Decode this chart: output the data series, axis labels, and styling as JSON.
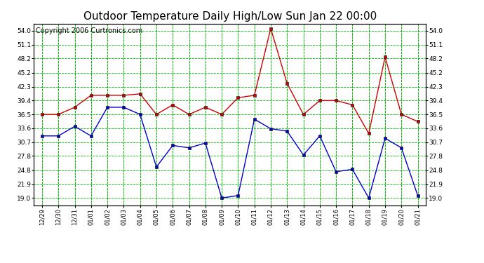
{
  "title": "Outdoor Temperature Daily High/Low Sun Jan 22 00:00",
  "copyright": "Copyright 2006 Curtronics.com",
  "x_labels": [
    "12/29",
    "12/30",
    "12/31",
    "01/01",
    "01/02",
    "01/03",
    "01/04",
    "01/05",
    "01/06",
    "01/07",
    "01/08",
    "01/09",
    "01/10",
    "01/11",
    "01/12",
    "01/13",
    "01/14",
    "01/15",
    "01/16",
    "01/17",
    "01/18",
    "01/19",
    "01/20",
    "01/21"
  ],
  "high_temps": [
    36.5,
    36.5,
    38.0,
    40.5,
    40.5,
    40.5,
    40.8,
    36.5,
    38.5,
    36.5,
    38.0,
    36.5,
    40.0,
    40.5,
    54.5,
    43.0,
    36.5,
    39.4,
    39.4,
    38.5,
    32.5,
    48.5,
    36.5,
    35.0
  ],
  "low_temps": [
    32.0,
    32.0,
    34.0,
    32.0,
    38.0,
    38.0,
    36.5,
    25.5,
    30.0,
    29.5,
    30.5,
    19.0,
    19.5,
    35.5,
    33.5,
    33.0,
    28.0,
    32.0,
    24.5,
    25.0,
    19.0,
    31.5,
    29.5,
    19.5
  ],
  "high_color": "#cc0000",
  "low_color": "#0000cc",
  "bg_color": "#ffffff",
  "grid_color": "#00bb00",
  "y_ticks": [
    19.0,
    21.9,
    24.8,
    27.8,
    30.7,
    33.6,
    36.5,
    39.4,
    42.3,
    45.2,
    48.2,
    51.1,
    54.0
  ],
  "y_min": 17.5,
  "y_max": 55.5,
  "title_fontsize": 11,
  "copyright_fontsize": 7
}
